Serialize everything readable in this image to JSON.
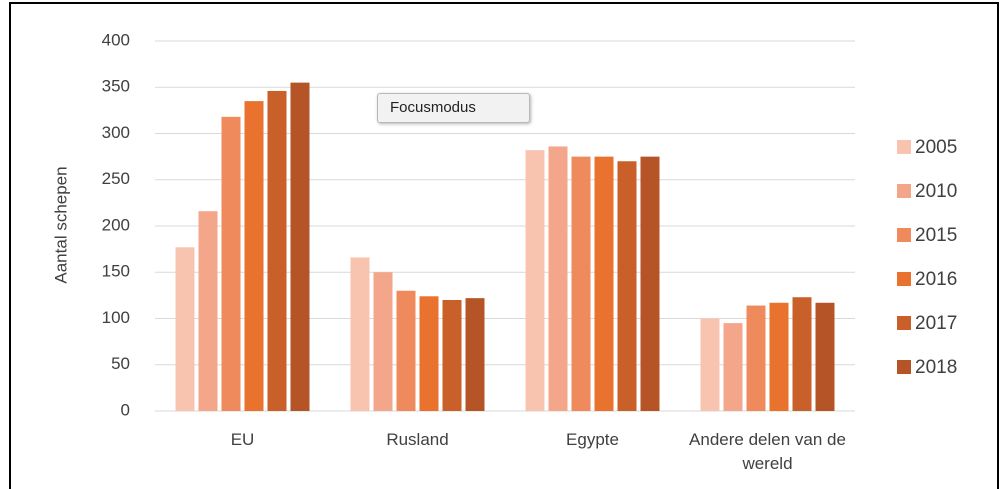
{
  "chart_data": {
    "type": "bar",
    "y_label": "Aantal schepen",
    "categories": [
      "EU",
      "Rusland",
      "Egypte",
      "Andere delen van de wereld"
    ],
    "series": [
      {
        "name": "2005",
        "color": "#f8c4b0",
        "values": [
          177,
          166,
          282,
          100
        ]
      },
      {
        "name": "2010",
        "color": "#f4a68a",
        "values": [
          216,
          150,
          286,
          95
        ]
      },
      {
        "name": "2015",
        "color": "#ef8a5c",
        "values": [
          318,
          130,
          275,
          114
        ]
      },
      {
        "name": "2016",
        "color": "#e8722e",
        "values": [
          335,
          124,
          275,
          117
        ]
      },
      {
        "name": "2017",
        "color": "#c9602a",
        "values": [
          346,
          120,
          270,
          123
        ]
      },
      {
        "name": "2018",
        "color": "#b55527",
        "values": [
          355,
          122,
          275,
          117
        ]
      }
    ],
    "ylim": [
      0,
      400
    ],
    "yticks": [
      0,
      50,
      100,
      150,
      200,
      250,
      300,
      350,
      400
    ],
    "grid": true,
    "legend": "right"
  },
  "tooltip": "Focusmodus"
}
